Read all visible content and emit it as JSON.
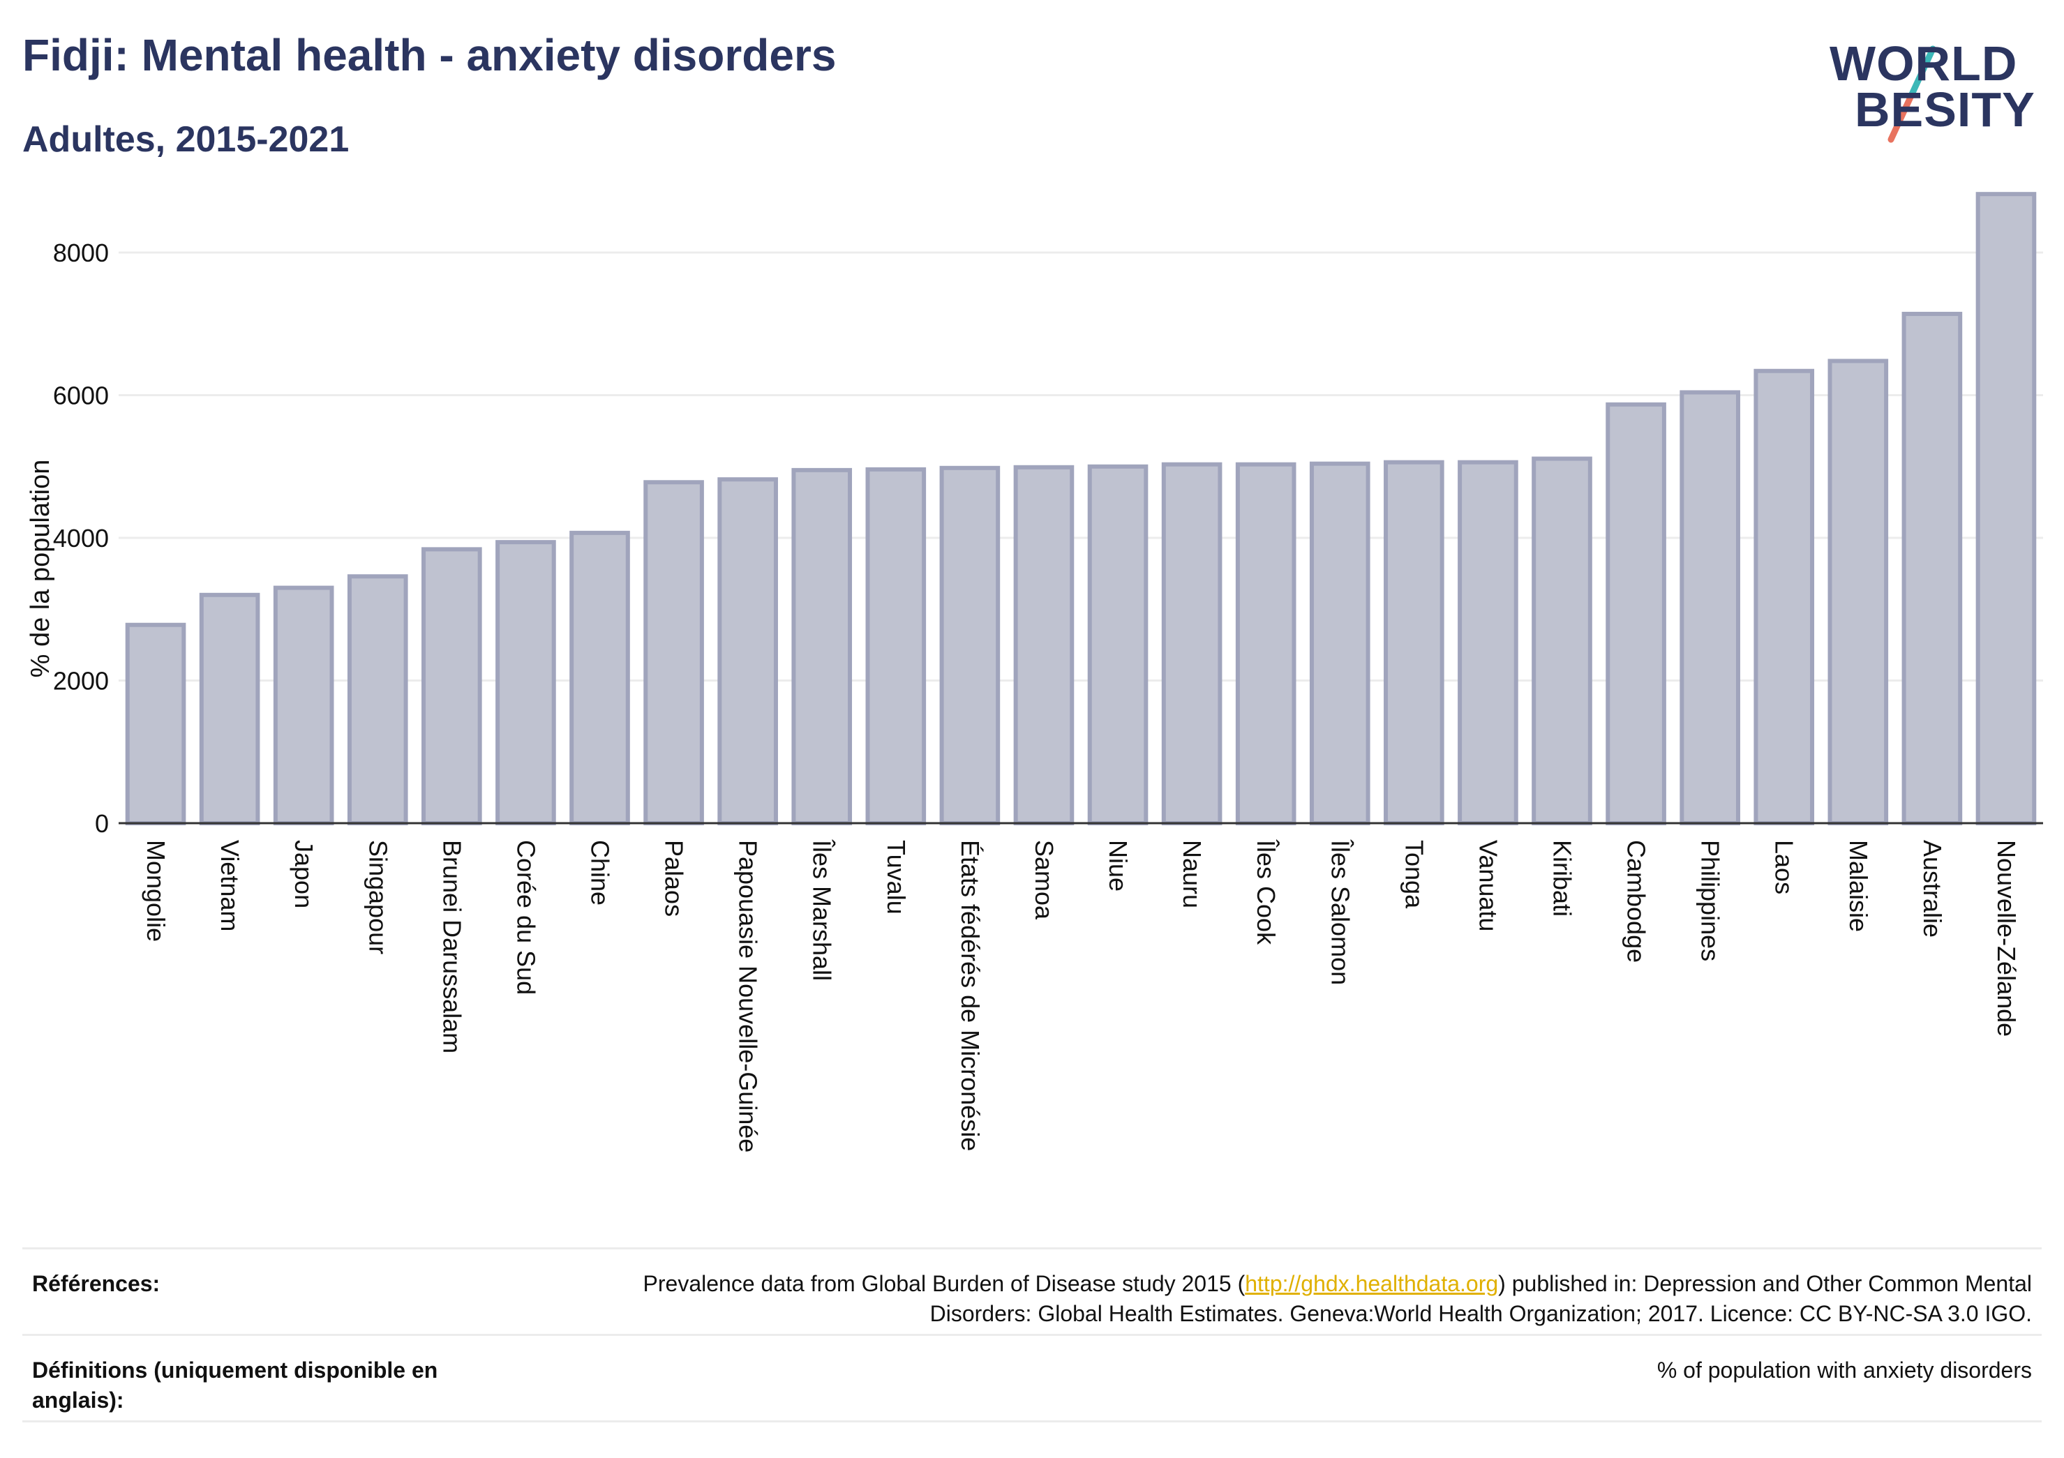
{
  "header": {
    "title": "Fidji: Mental health - anxiety disorders",
    "subtitle": "Adultes, 2015-2021"
  },
  "logo": {
    "line1": "WORLD",
    "line2": "BESITY"
  },
  "chart_data": {
    "type": "bar",
    "ylabel": "% de la population",
    "xlabel": "",
    "ylim": [
      0,
      8900
    ],
    "yticks": [
      0,
      2000,
      4000,
      6000,
      8000
    ],
    "grid": true,
    "categories": [
      "Mongolie",
      "Vietnam",
      "Japon",
      "Singapour",
      "Brunei Darussalam",
      "Corée du Sud",
      "Chine",
      "Palaos",
      "Papouasie Nouvelle-Guinée",
      "Îles Marshall",
      "Tuvalu",
      "États fédérés de Micronésie",
      "Samoa",
      "Niue",
      "Nauru",
      "Îles Cook",
      "Îles Salomon",
      "Tonga",
      "Vanuatu",
      "Kiribati",
      "Cambodge",
      "Philippines",
      "Laos",
      "Malaisie",
      "Australie",
      "Nouvelle-Zélande"
    ],
    "values": [
      2780,
      3200,
      3300,
      3460,
      3840,
      3940,
      4070,
      4780,
      4820,
      4950,
      4960,
      4980,
      4990,
      5000,
      5030,
      5030,
      5040,
      5060,
      5060,
      5110,
      5870,
      6040,
      6340,
      6480,
      7140,
      8820
    ],
    "colors": {
      "bar_fill": "#bfc2d0",
      "bar_stroke": "#a0a4bc",
      "axis": "#333333",
      "grid": "#ececec"
    }
  },
  "footer": {
    "references_label": "Références:",
    "references_text_before": "Prevalence data from Global Burden of Disease study 2015 (",
    "references_link": "http://ghdx.healthdata.org",
    "references_text_after": ") published in: Depression and Other Common Mental Disorders: Global Health Estimates. Geneva:World Health Organization; 2017. Licence: CC BY-NC-SA 3.0 IGO.",
    "definitions_label": "Définitions (uniquement disponible en anglais):",
    "definitions_text": "% of population with anxiety disorders"
  }
}
